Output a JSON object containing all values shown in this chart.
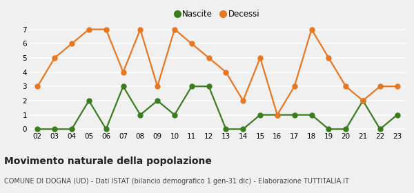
{
  "years": [
    "02",
    "03",
    "04",
    "05",
    "06",
    "07",
    "08",
    "09",
    "10",
    "11",
    "12",
    "13",
    "14",
    "15",
    "16",
    "17",
    "18",
    "19",
    "20",
    "21",
    "22",
    "23"
  ],
  "nascite": [
    0,
    0,
    0,
    2,
    0,
    3,
    1,
    2,
    1,
    3,
    3,
    0,
    0,
    1,
    1,
    1,
    1,
    0,
    0,
    2,
    0,
    1
  ],
  "decessi": [
    3,
    5,
    6,
    7,
    7,
    4,
    7,
    3,
    7,
    6,
    5,
    4,
    2,
    5,
    1,
    3,
    7,
    5,
    3,
    2,
    3,
    3
  ],
  "nascite_color": "#3a7d1e",
  "decessi_color": "#e87722",
  "bg_color": "#f0f0f0",
  "grid_color": "#ffffff",
  "ylim_min": 0,
  "ylim_max": 7,
  "yticks": [
    0,
    1,
    2,
    3,
    4,
    5,
    6,
    7
  ],
  "legend_nascite": "Nascite",
  "legend_decessi": "Decessi",
  "title": "Movimento naturale della popolazione",
  "subtitle": "COMUNE DI DOGNA (UD) - Dati ISTAT (bilancio demografico 1 gen-31 dic) - Elaborazione TUTTITALIA.IT",
  "title_fontsize": 10,
  "subtitle_fontsize": 7,
  "marker_size": 5,
  "line_width": 1.6
}
